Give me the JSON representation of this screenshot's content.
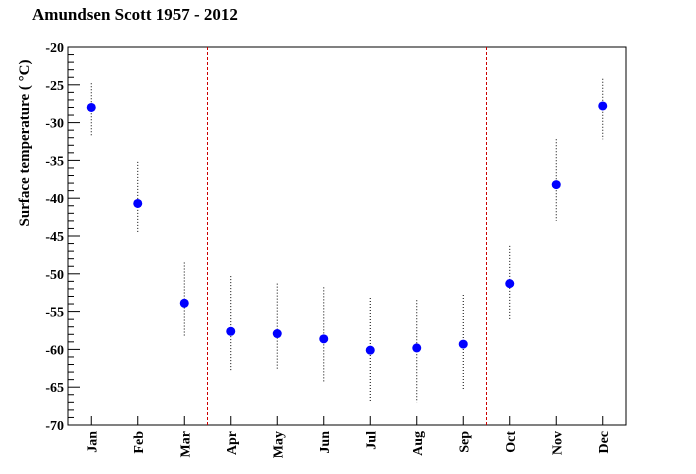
{
  "chart_data": {
    "type": "scatter",
    "title": "Amundsen Scott 1957 - 2012",
    "xlabel": "",
    "ylabel": "Surface temperature (  °C)",
    "ylim": [
      -70,
      -20
    ],
    "yticks": [
      -20,
      -25,
      -30,
      -35,
      -40,
      -45,
      -50,
      -55,
      -60,
      -65,
      -70
    ],
    "categories": [
      "Jan",
      "Feb",
      "Mar",
      "Apr",
      "May",
      "Jun",
      "Jul",
      "Aug",
      "Sep",
      "Oct",
      "Nov",
      "Dec"
    ],
    "values": [
      -28.0,
      -40.7,
      -53.9,
      -57.6,
      -57.9,
      -58.6,
      -60.1,
      -59.8,
      -59.3,
      -51.3,
      -38.2,
      -27.8
    ],
    "ranges": [
      [
        -31.8,
        -24.8
      ],
      [
        -44.5,
        -35.2
      ],
      [
        -58.3,
        -48.5
      ],
      [
        -62.8,
        -50.3
      ],
      [
        -62.8,
        -51.3
      ],
      [
        -64.5,
        -51.8
      ],
      [
        -67.0,
        -53.2
      ],
      [
        -67.0,
        -53.5
      ],
      [
        -65.5,
        -52.8
      ],
      [
        -56.0,
        -46.3
      ],
      [
        -43.0,
        -32.2
      ],
      [
        -32.2,
        -24.2
      ]
    ],
    "vlines_between": [
      [
        "Mar",
        "Apr"
      ],
      [
        "Sep",
        "Oct"
      ]
    ],
    "marker_color": "#0000ff",
    "vline_color": "#cc0000",
    "grid": false
  }
}
